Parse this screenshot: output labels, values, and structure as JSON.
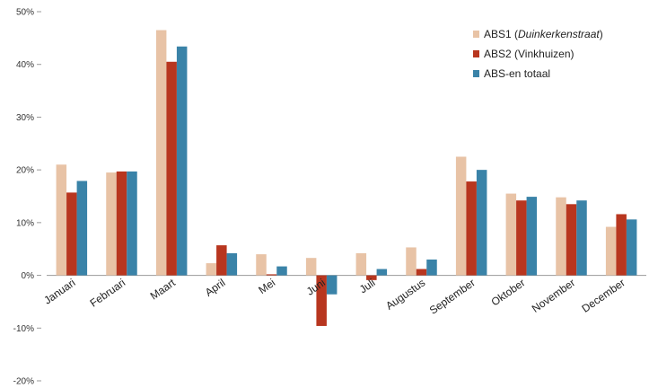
{
  "chart_data": {
    "type": "bar",
    "title": "",
    "xlabel": "",
    "ylabel": "",
    "ylim": [
      -20,
      50
    ],
    "yticks": [
      -20,
      -10,
      0,
      10,
      20,
      30,
      40,
      50
    ],
    "ytick_labels": [
      "-20%",
      "-10%",
      "0%",
      "10%",
      "20%",
      "30%",
      "40%",
      "50%"
    ],
    "grid": false,
    "legend_position": "top-right",
    "categories": [
      "Januari",
      "Februari",
      "Maart",
      "April",
      "Mei",
      "Juni",
      "Juli",
      "Augustus",
      "September",
      "Oktober",
      "November",
      "December"
    ],
    "series": [
      {
        "name": "ABS1 (Duinkerkenstraat)",
        "color": "#E8C3A6",
        "values": [
          21,
          19.5,
          46.5,
          2.3,
          4,
          3.3,
          4.2,
          5.3,
          22.5,
          15.5,
          14.8,
          9.2
        ]
      },
      {
        "name": "ABS2 (Vinkhuizen)",
        "color": "#B8361F",
        "values": [
          15.7,
          19.7,
          40.5,
          5.7,
          0.2,
          -9.6,
          -0.9,
          1.2,
          17.8,
          14.2,
          13.5,
          11.6
        ]
      },
      {
        "name": "ABS-en totaal",
        "color": "#3A83A8",
        "values": [
          17.9,
          19.7,
          43.4,
          4.2,
          1.7,
          -3.6,
          1.2,
          3,
          20,
          14.9,
          14.2,
          10.6
        ]
      }
    ]
  }
}
